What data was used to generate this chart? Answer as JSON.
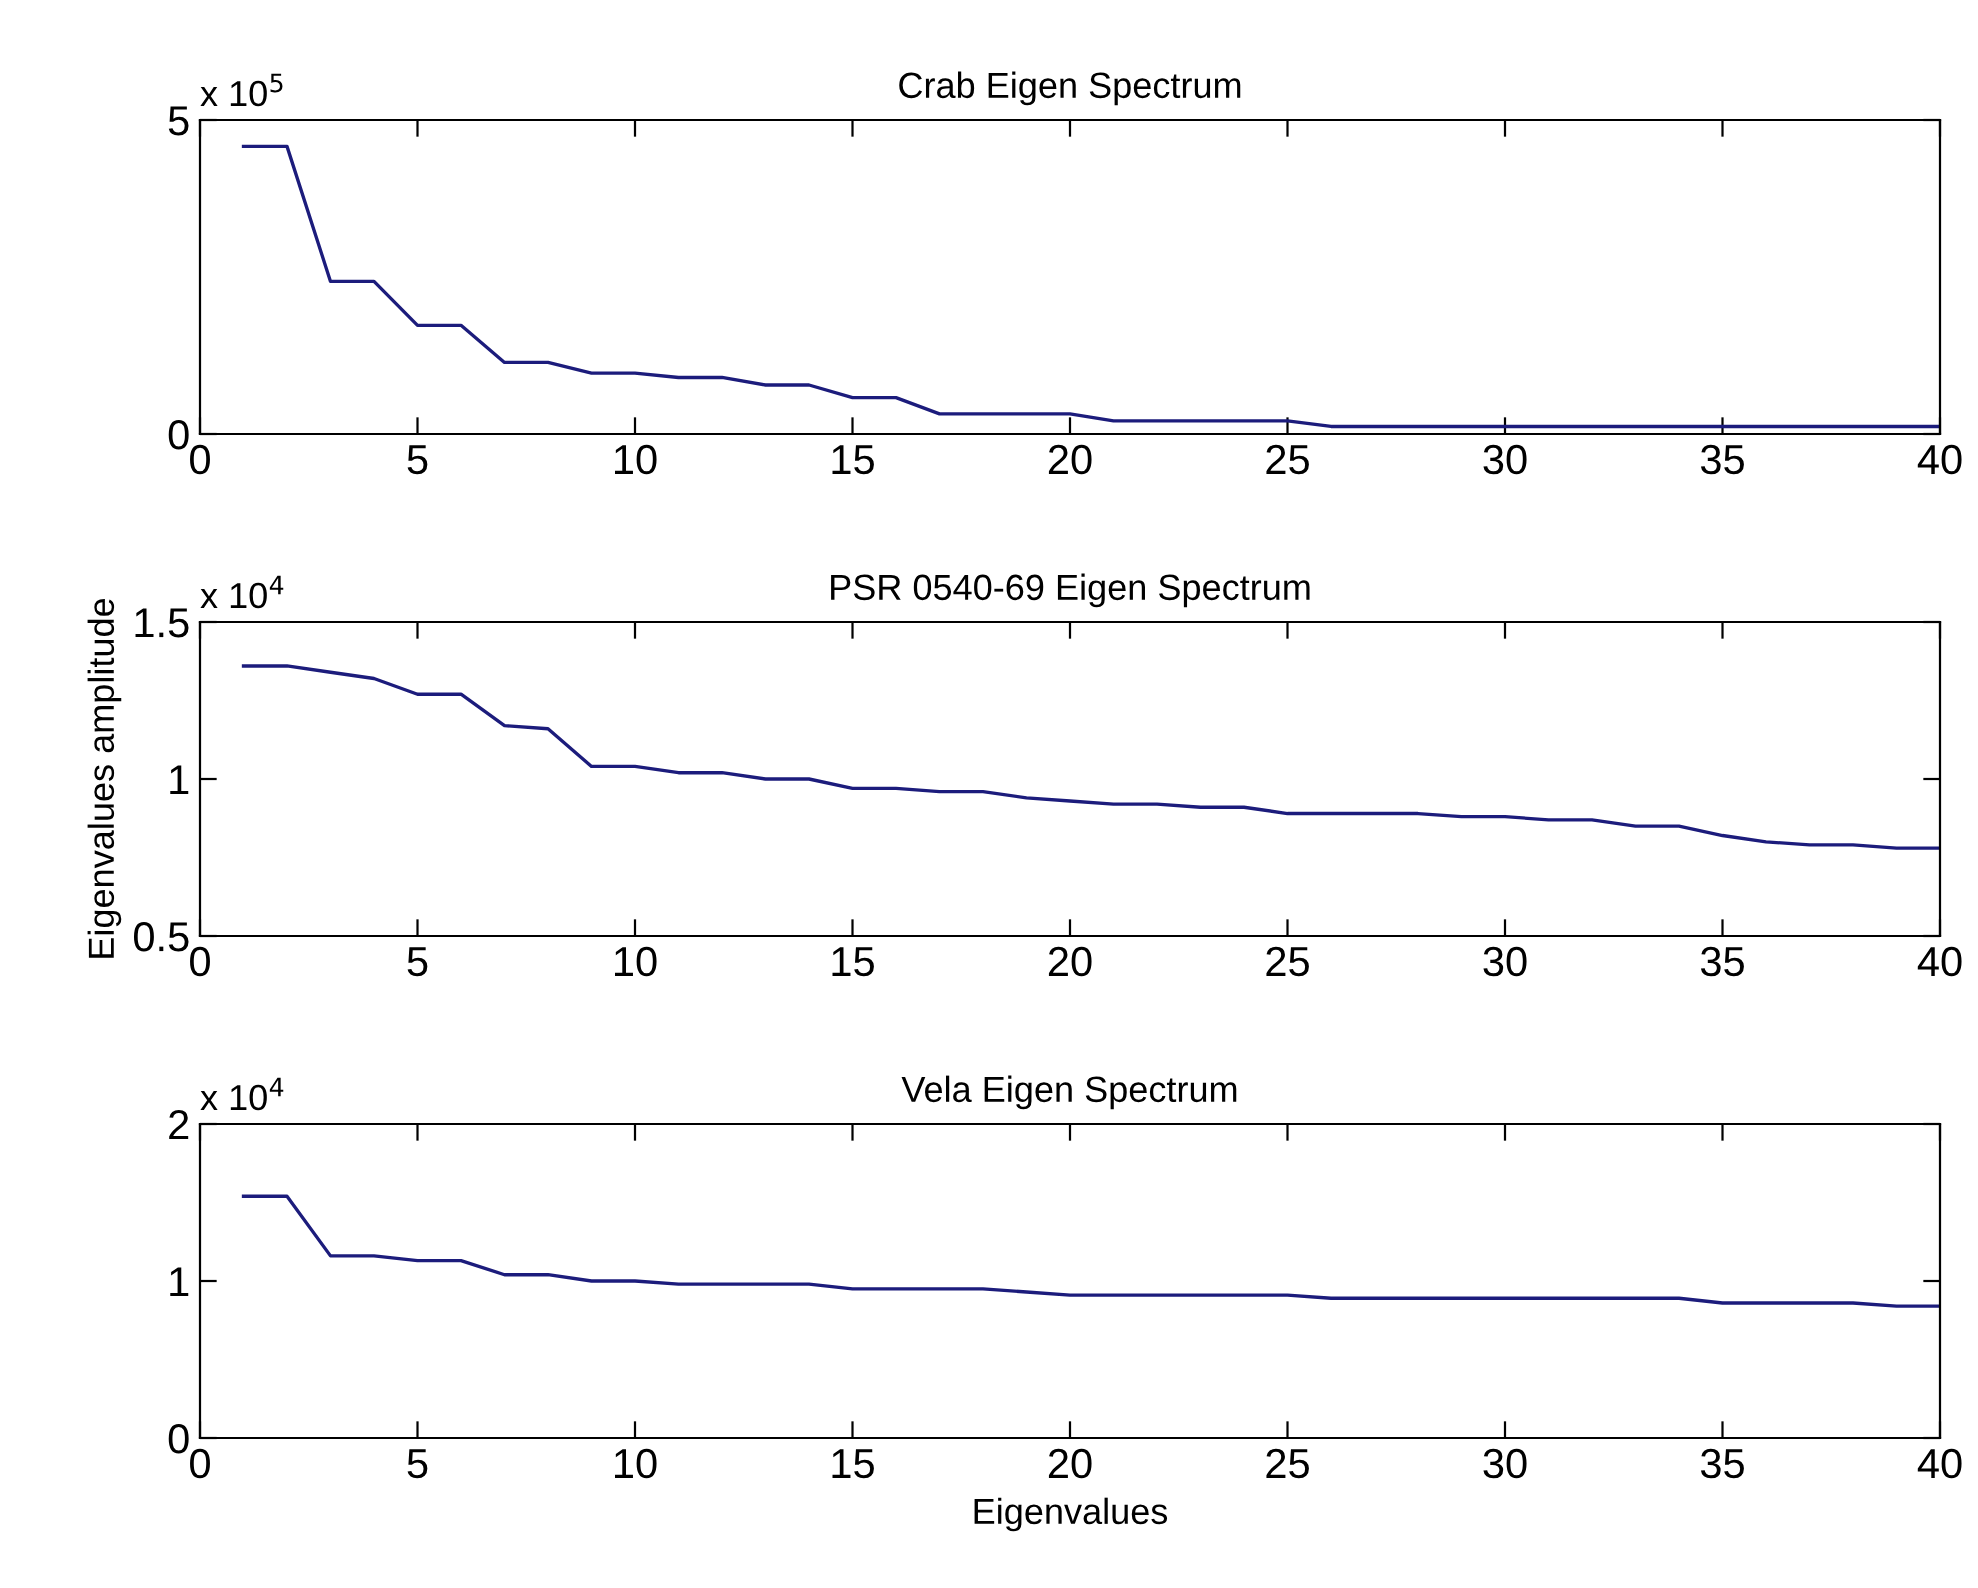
{
  "chart_data": [
    {
      "type": "line",
      "title": "Crab Eigen Spectrum",
      "annotations": [
        "x 10$^{5}$"
      ],
      "color": "#1c1c7c",
      "xlim": [
        0,
        40
      ],
      "xticks": [
        0,
        5,
        10,
        15,
        20,
        25,
        30,
        35,
        40
      ],
      "ylim": [
        0,
        5
      ],
      "yticks": [
        0,
        5
      ],
      "x": [
        1,
        2,
        3,
        4,
        5,
        6,
        7,
        8,
        9,
        10,
        11,
        12,
        13,
        14,
        15,
        16,
        17,
        18,
        19,
        20,
        21,
        22,
        23,
        24,
        25,
        26,
        27,
        28,
        29,
        30,
        31,
        32,
        33,
        34,
        35,
        36,
        37,
        38,
        39,
        40
      ],
      "values": [
        4.58,
        4.58,
        2.43,
        2.43,
        1.73,
        1.73,
        1.14,
        1.14,
        0.97,
        0.97,
        0.9,
        0.9,
        0.78,
        0.78,
        0.58,
        0.58,
        0.32,
        0.32,
        0.32,
        0.32,
        0.21,
        0.21,
        0.21,
        0.21,
        0.21,
        0.12,
        0.12,
        0.12,
        0.12,
        0.12,
        0.12,
        0.12,
        0.12,
        0.12,
        0.12,
        0.12,
        0.12,
        0.12,
        0.12,
        0.12
      ]
    },
    {
      "type": "line",
      "title": "PSR 0540-69 Eigen Spectrum",
      "ylabel": "Eigenvalues amplitude",
      "annotations": [
        "x 10$^{4}$"
      ],
      "color": "#1c1c7c",
      "xlim": [
        0,
        40
      ],
      "xticks": [
        0,
        5,
        10,
        15,
        20,
        25,
        30,
        35,
        40
      ],
      "ylim": [
        0.5,
        1.5
      ],
      "yticks": [
        0.5,
        1,
        1.5
      ],
      "x": [
        1,
        2,
        3,
        4,
        5,
        6,
        7,
        8,
        9,
        10,
        11,
        12,
        13,
        14,
        15,
        16,
        17,
        18,
        19,
        20,
        21,
        22,
        23,
        24,
        25,
        26,
        27,
        28,
        29,
        30,
        31,
        32,
        33,
        34,
        35,
        36,
        37,
        38,
        39,
        40
      ],
      "values": [
        1.36,
        1.36,
        1.34,
        1.32,
        1.27,
        1.27,
        1.17,
        1.16,
        1.04,
        1.04,
        1.02,
        1.02,
        1.0,
        1.0,
        0.97,
        0.97,
        0.96,
        0.96,
        0.94,
        0.93,
        0.92,
        0.92,
        0.91,
        0.91,
        0.89,
        0.89,
        0.89,
        0.89,
        0.88,
        0.88,
        0.87,
        0.87,
        0.85,
        0.85,
        0.82,
        0.8,
        0.79,
        0.79,
        0.78,
        0.78
      ]
    },
    {
      "type": "line",
      "title": "Vela Eigen Spectrum",
      "xlabel": "Eigenvalues",
      "annotations": [
        "x 10$^{4}$"
      ],
      "color": "#1c1c7c",
      "xlim": [
        0,
        40
      ],
      "xticks": [
        0,
        5,
        10,
        15,
        20,
        25,
        30,
        35,
        40
      ],
      "ylim": [
        0,
        2
      ],
      "yticks": [
        0,
        1,
        2
      ],
      "x": [
        1,
        2,
        3,
        4,
        5,
        6,
        7,
        8,
        9,
        10,
        11,
        12,
        13,
        14,
        15,
        16,
        17,
        18,
        19,
        20,
        21,
        22,
        23,
        24,
        25,
        26,
        27,
        28,
        29,
        30,
        31,
        32,
        33,
        34,
        35,
        36,
        37,
        38,
        39,
        40
      ],
      "values": [
        1.54,
        1.54,
        1.16,
        1.16,
        1.13,
        1.13,
        1.04,
        1.04,
        1.0,
        1.0,
        0.98,
        0.98,
        0.98,
        0.98,
        0.95,
        0.95,
        0.95,
        0.95,
        0.93,
        0.91,
        0.91,
        0.91,
        0.91,
        0.91,
        0.91,
        0.89,
        0.89,
        0.89,
        0.89,
        0.89,
        0.89,
        0.89,
        0.89,
        0.89,
        0.86,
        0.86,
        0.86,
        0.86,
        0.84,
        0.84
      ]
    }
  ]
}
